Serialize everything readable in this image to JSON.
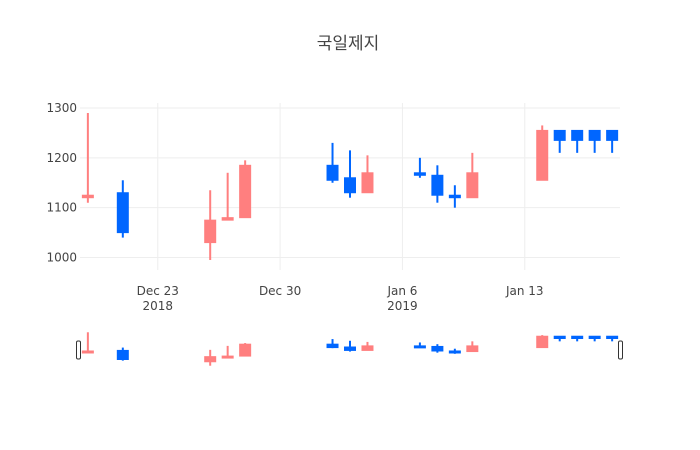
{
  "chart_data": {
    "type": "candlestick",
    "title": "국일제지",
    "ylim": [
      975,
      1310
    ],
    "yticks": [
      1000,
      1100,
      1200,
      1300
    ],
    "xrange": [
      "2018-12-19",
      "2019-01-18"
    ],
    "xticks": [
      {
        "date": "2018-12-23",
        "label": "Dec 23",
        "sublabel": "2018"
      },
      {
        "date": "2018-12-30",
        "label": "Dec 30",
        "sublabel": ""
      },
      {
        "date": "2019-01-06",
        "label": "Jan 6",
        "sublabel": "2019"
      },
      {
        "date": "2019-01-13",
        "label": "Jan 13",
        "sublabel": ""
      }
    ],
    "increasing_color": "#FF7F7F",
    "decreasing_color": "#0066FF",
    "candles": [
      {
        "date": "2018-12-19",
        "open": 1120,
        "high": 1290,
        "low": 1110,
        "close": 1125
      },
      {
        "date": "2018-12-21",
        "open": 1130,
        "high": 1155,
        "low": 1040,
        "close": 1050
      },
      {
        "date": "2018-12-26",
        "open": 1030,
        "high": 1135,
        "low": 995,
        "close": 1075
      },
      {
        "date": "2018-12-27",
        "open": 1075,
        "high": 1170,
        "low": 1075,
        "close": 1080
      },
      {
        "date": "2018-12-28",
        "open": 1080,
        "high": 1195,
        "low": 1080,
        "close": 1185
      },
      {
        "date": "2019-01-02",
        "open": 1185,
        "high": 1230,
        "low": 1150,
        "close": 1155
      },
      {
        "date": "2019-01-03",
        "open": 1160,
        "high": 1215,
        "low": 1120,
        "close": 1130
      },
      {
        "date": "2019-01-04",
        "open": 1130,
        "high": 1205,
        "low": 1130,
        "close": 1170
      },
      {
        "date": "2019-01-07",
        "open": 1170,
        "high": 1200,
        "low": 1160,
        "close": 1165
      },
      {
        "date": "2019-01-08",
        "open": 1165,
        "high": 1185,
        "low": 1110,
        "close": 1125
      },
      {
        "date": "2019-01-09",
        "open": 1125,
        "high": 1145,
        "low": 1100,
        "close": 1120
      },
      {
        "date": "2019-01-10",
        "open": 1120,
        "high": 1210,
        "low": 1120,
        "close": 1170
      },
      {
        "date": "2019-01-14",
        "open": 1155,
        "high": 1265,
        "low": 1155,
        "close": 1255
      },
      {
        "date": "2019-01-15",
        "open": 1255,
        "high": 1255,
        "low": 1210,
        "close": 1235
      },
      {
        "date": "2019-01-16",
        "open": 1255,
        "high": 1255,
        "low": 1210,
        "close": 1235
      },
      {
        "date": "2019-01-17",
        "open": 1255,
        "high": 1255,
        "low": 1210,
        "close": 1235
      },
      {
        "date": "2019-01-18",
        "open": 1255,
        "high": 1255,
        "low": 1210,
        "close": 1235
      }
    ]
  }
}
